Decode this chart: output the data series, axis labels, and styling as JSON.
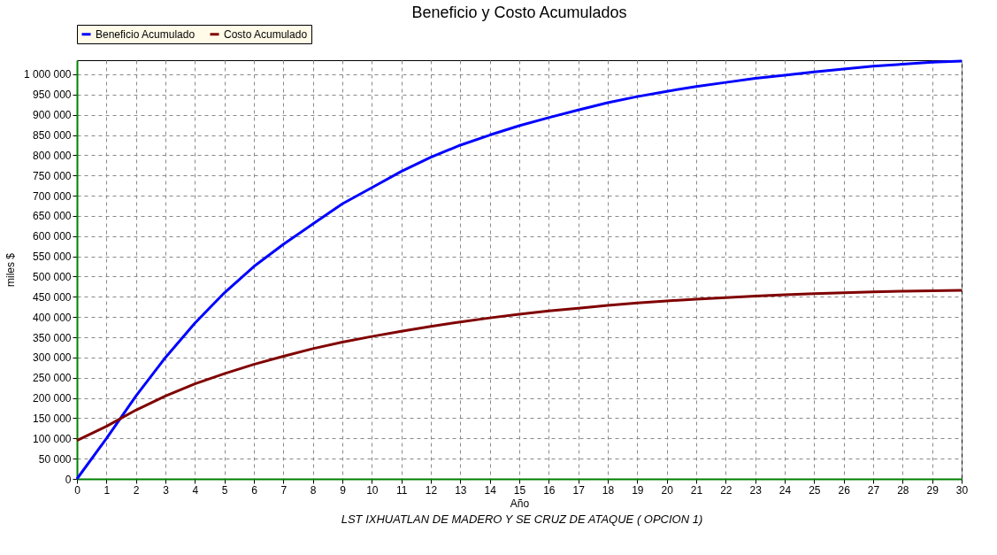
{
  "chart_data": {
    "type": "line",
    "title": "Beneficio y Costo Acumulados",
    "xlabel": "Año",
    "ylabel": "miles $",
    "annotations": [
      "LST IXHUATLAN DE MADERO  Y SE CRUZ DE ATAQUE ( OPCION 1)"
    ],
    "x": [
      0,
      1,
      2,
      3,
      4,
      5,
      6,
      7,
      8,
      9,
      10,
      11,
      12,
      13,
      14,
      15,
      16,
      17,
      18,
      19,
      20,
      21,
      22,
      23,
      24,
      25,
      26,
      27,
      28,
      29,
      30
    ],
    "series": [
      {
        "name": "Beneficio Acumulado",
        "color": "#0000ff",
        "values": [
          0,
          100000,
          205000,
          300000,
          385000,
          460000,
          525000,
          580000,
          630000,
          680000,
          720000,
          760000,
          795000,
          825000,
          850000,
          873000,
          893000,
          912000,
          930000,
          945000,
          958000,
          970000,
          980000,
          990000,
          998000,
          1006000,
          1013000,
          1020000,
          1025000,
          1030000,
          1033000
        ]
      },
      {
        "name": "Costo Acumulado",
        "color": "#800000",
        "values": [
          95000,
          130000,
          170000,
          205000,
          235000,
          260000,
          283000,
          303000,
          322000,
          338000,
          352000,
          365000,
          377000,
          388000,
          398000,
          407000,
          415000,
          422000,
          429000,
          435000,
          440000,
          444000,
          448000,
          452000,
          455000,
          458000,
          460000,
          462000,
          464000,
          465000,
          466000
        ]
      }
    ],
    "xlim": [
      0,
      30
    ],
    "xticks": [
      0,
      1,
      2,
      3,
      4,
      5,
      6,
      7,
      8,
      9,
      10,
      11,
      12,
      13,
      14,
      15,
      16,
      17,
      18,
      19,
      20,
      21,
      22,
      23,
      24,
      25,
      26,
      27,
      28,
      29,
      30
    ],
    "ylim": [
      0,
      1035000
    ],
    "yticks": [
      0,
      {
        "value": 50000,
        "label": "50 000"
      },
      {
        "value": 100000,
        "label": "100 000"
      },
      {
        "value": 150000,
        "label": "150 000"
      },
      {
        "value": 200000,
        "label": "200 000"
      },
      {
        "value": 250000,
        "label": "250 000"
      },
      {
        "value": 300000,
        "label": "300 000"
      },
      {
        "value": 350000,
        "label": "350 000"
      },
      {
        "value": 400000,
        "label": "400 000"
      },
      {
        "value": 450000,
        "label": "450 000"
      },
      {
        "value": 500000,
        "label": "500 000"
      },
      {
        "value": 550000,
        "label": "550 000"
      },
      {
        "value": 600000,
        "label": "600 000"
      },
      {
        "value": 650000,
        "label": "650 000"
      },
      {
        "value": 700000,
        "label": "700 000"
      },
      {
        "value": 750000,
        "label": "750 000"
      },
      {
        "value": 800000,
        "label": "800 000"
      },
      {
        "value": 850000,
        "label": "850 000"
      },
      {
        "value": 900000,
        "label": "900 000"
      },
      {
        "value": 950000,
        "label": "950 000"
      },
      {
        "value": 1000000,
        "label": "1 000 000"
      }
    ],
    "grid": true,
    "legend": "top",
    "marker": "none",
    "line_style": "solid"
  }
}
